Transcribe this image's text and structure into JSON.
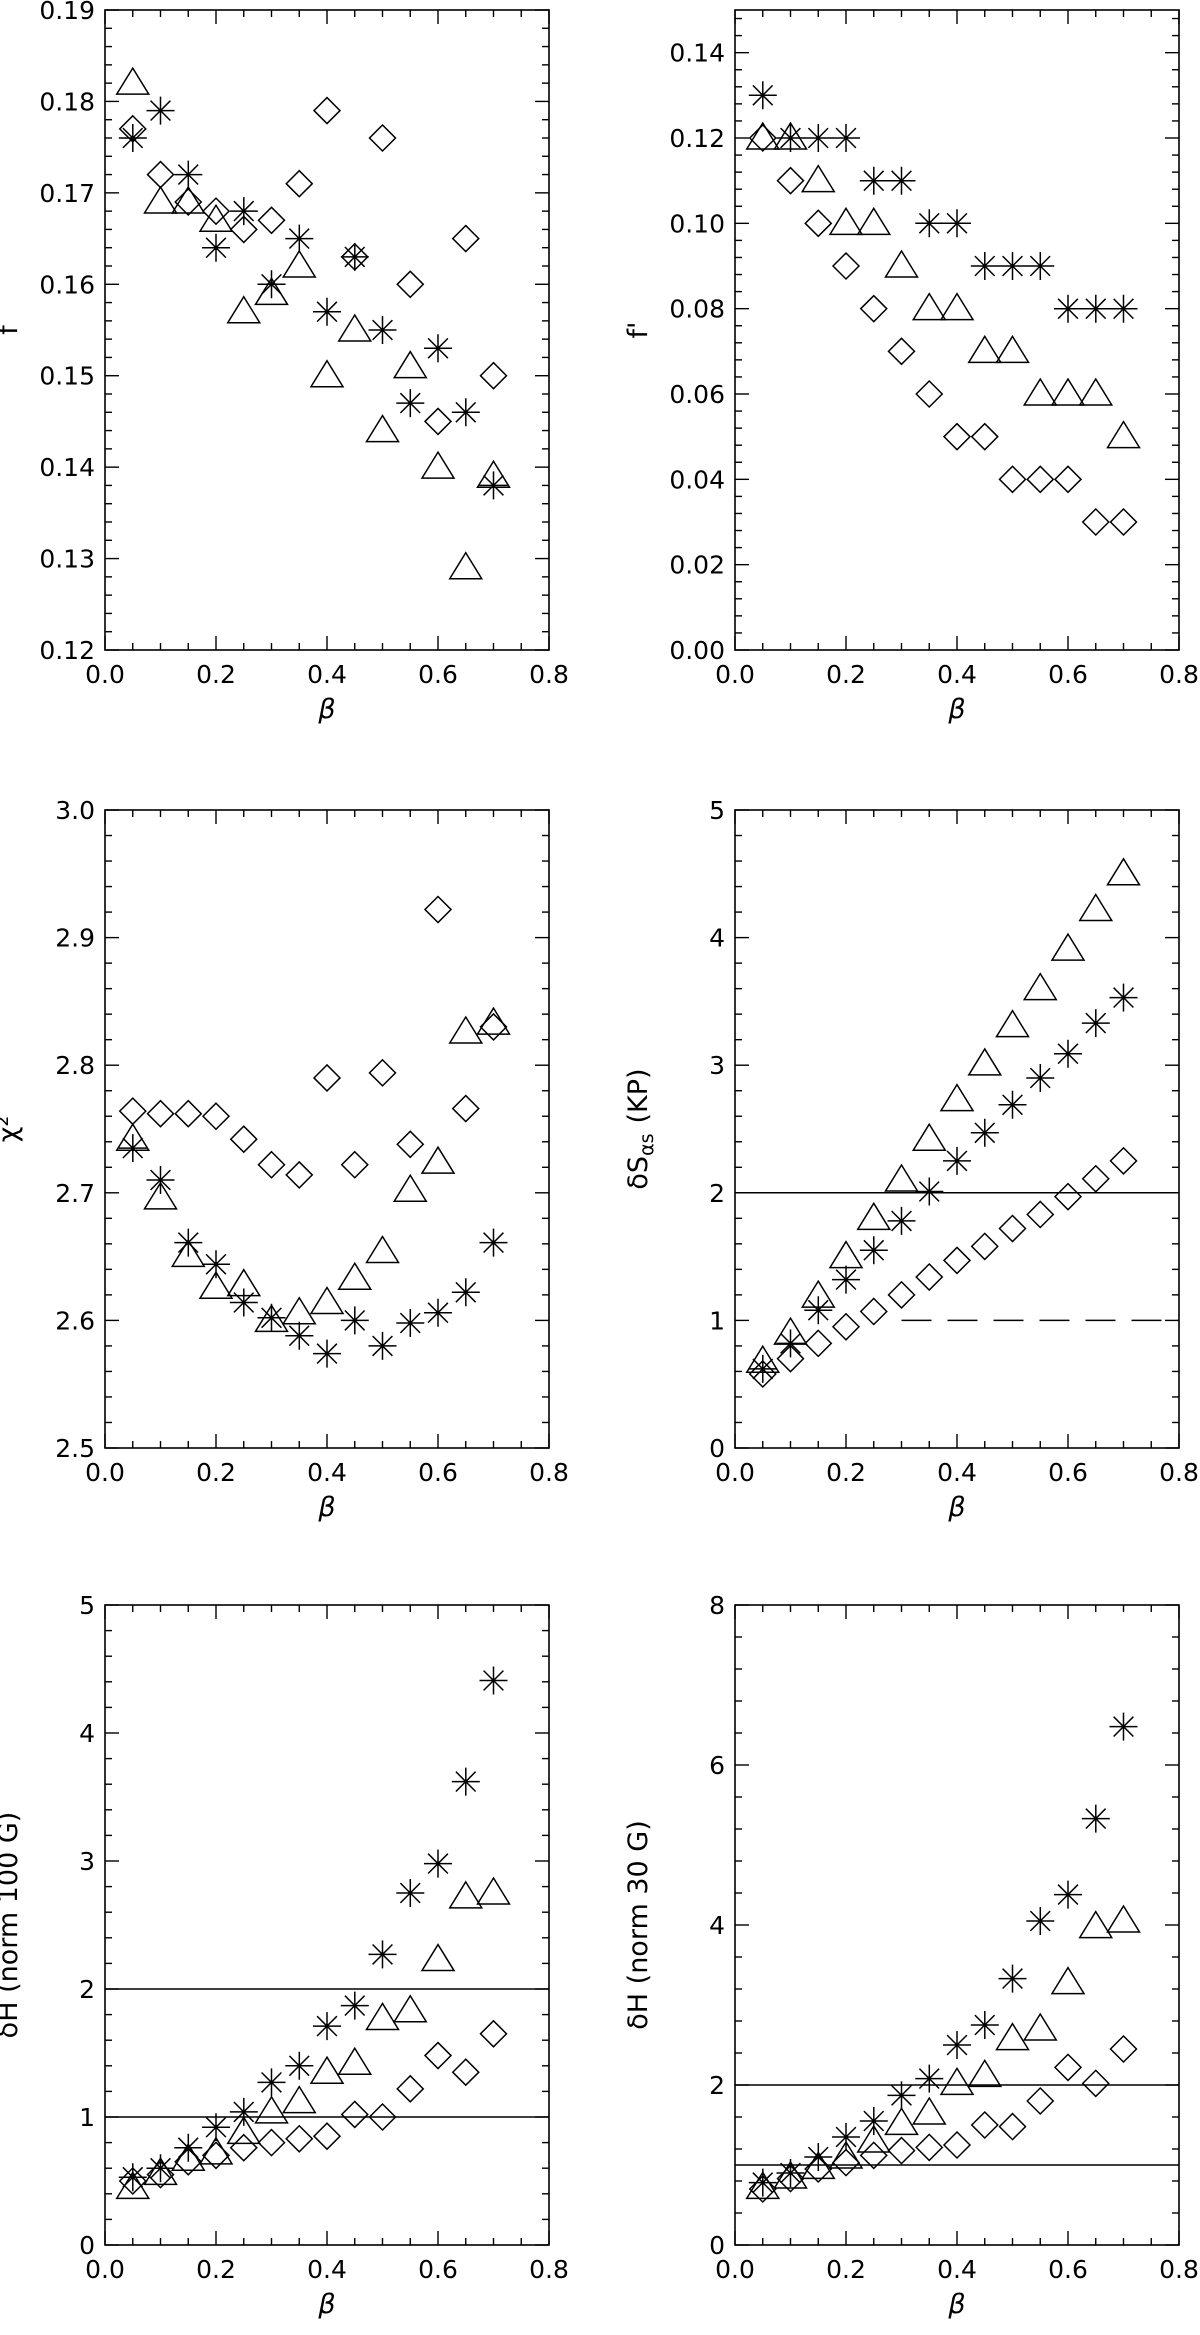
{
  "chart_data": [
    {
      "type": "scatter",
      "panel": "top-left",
      "xlabel": "β",
      "ylabel": "f",
      "xlim": [
        0.0,
        0.8
      ],
      "ylim": [
        0.12,
        0.19
      ],
      "xticks": [
        "0.0",
        "0.2",
        "0.4",
        "0.6",
        "0.8"
      ],
      "yticks": [
        "0.12",
        "0.13",
        "0.14",
        "0.15",
        "0.16",
        "0.17",
        "0.18",
        "0.19"
      ],
      "grid": false,
      "series": [
        {
          "marker": "diamond",
          "x": [
            0.05,
            0.1,
            0.15,
            0.2,
            0.25,
            0.3,
            0.35,
            0.4,
            0.45,
            0.5,
            0.55,
            0.6,
            0.65,
            0.7
          ],
          "y": [
            0.177,
            0.172,
            0.169,
            0.168,
            0.166,
            0.167,
            0.171,
            0.179,
            0.163,
            0.176,
            0.16,
            0.145,
            0.165,
            0.15
          ]
        },
        {
          "marker": "triangle",
          "x": [
            0.05,
            0.1,
            0.15,
            0.2,
            0.25,
            0.3,
            0.35,
            0.4,
            0.45,
            0.5,
            0.55,
            0.6,
            0.65,
            0.7
          ],
          "y": [
            0.182,
            0.169,
            0.169,
            0.167,
            0.157,
            0.159,
            0.162,
            0.15,
            0.155,
            0.144,
            0.151,
            0.14,
            0.129,
            0.139
          ]
        },
        {
          "marker": "asterisk",
          "x": [
            0.05,
            0.1,
            0.15,
            0.2,
            0.25,
            0.3,
            0.35,
            0.4,
            0.45,
            0.5,
            0.55,
            0.6,
            0.65,
            0.7
          ],
          "y": [
            0.176,
            0.179,
            0.172,
            0.164,
            0.168,
            0.16,
            0.165,
            0.157,
            0.163,
            0.155,
            0.147,
            0.153,
            0.146,
            0.138
          ]
        }
      ],
      "reference_lines": []
    },
    {
      "type": "scatter",
      "panel": "top-right",
      "xlabel": "β",
      "ylabel": "f'",
      "xlim": [
        0.0,
        0.8
      ],
      "ylim": [
        0.0,
        0.15
      ],
      "xticks": [
        "0.0",
        "0.2",
        "0.4",
        "0.6",
        "0.8"
      ],
      "yticks": [
        "0.00",
        "0.02",
        "0.04",
        "0.06",
        "0.08",
        "0.10",
        "0.12",
        "0.14"
      ],
      "grid": false,
      "series": [
        {
          "marker": "diamond",
          "x": [
            0.05,
            0.1,
            0.15,
            0.2,
            0.25,
            0.3,
            0.35,
            0.4,
            0.45,
            0.5,
            0.55,
            0.6,
            0.65,
            0.7
          ],
          "y": [
            0.12,
            0.11,
            0.1,
            0.09,
            0.08,
            0.07,
            0.06,
            0.05,
            0.05,
            0.04,
            0.04,
            0.04,
            0.03,
            0.03
          ]
        },
        {
          "marker": "triangle",
          "x": [
            0.05,
            0.1,
            0.15,
            0.2,
            0.25,
            0.3,
            0.35,
            0.4,
            0.45,
            0.5,
            0.55,
            0.6,
            0.65,
            0.7
          ],
          "y": [
            0.12,
            0.12,
            0.11,
            0.1,
            0.1,
            0.09,
            0.08,
            0.08,
            0.07,
            0.07,
            0.06,
            0.06,
            0.06,
            0.05
          ]
        },
        {
          "marker": "asterisk",
          "x": [
            0.05,
            0.1,
            0.15,
            0.2,
            0.25,
            0.3,
            0.35,
            0.4,
            0.45,
            0.5,
            0.55,
            0.6,
            0.65,
            0.7
          ],
          "y": [
            0.13,
            0.12,
            0.12,
            0.12,
            0.11,
            0.11,
            0.1,
            0.1,
            0.09,
            0.09,
            0.09,
            0.08,
            0.08,
            0.08
          ]
        }
      ],
      "reference_lines": []
    },
    {
      "type": "scatter",
      "panel": "middle-left",
      "xlabel": "β",
      "ylabel": "χ²",
      "xlim": [
        0.0,
        0.8
      ],
      "ylim": [
        2.5,
        3.0
      ],
      "xticks": [
        "0.0",
        "0.2",
        "0.4",
        "0.6",
        "0.8"
      ],
      "yticks": [
        "2.5",
        "2.6",
        "2.7",
        "2.8",
        "2.9",
        "3.0"
      ],
      "grid": false,
      "series": [
        {
          "marker": "diamond",
          "x": [
            0.05,
            0.1,
            0.15,
            0.2,
            0.25,
            0.3,
            0.35,
            0.4,
            0.45,
            0.5,
            0.55,
            0.6,
            0.65,
            0.7
          ],
          "y": [
            2.764,
            2.762,
            2.762,
            2.76,
            2.742,
            2.722,
            2.714,
            2.79,
            2.722,
            2.794,
            2.738,
            2.922,
            2.766,
            2.83
          ]
        },
        {
          "marker": "triangle",
          "x": [
            0.05,
            0.1,
            0.15,
            0.2,
            0.25,
            0.3,
            0.35,
            0.4,
            0.45,
            0.5,
            0.55,
            0.6,
            0.65,
            0.7
          ],
          "y": [
            2.742,
            2.696,
            2.651,
            2.626,
            2.628,
            2.6,
            2.606,
            2.614,
            2.633,
            2.654,
            2.702,
            2.724,
            2.826,
            2.833
          ]
        },
        {
          "marker": "asterisk",
          "x": [
            0.05,
            0.1,
            0.15,
            0.2,
            0.25,
            0.3,
            0.35,
            0.4,
            0.45,
            0.5,
            0.55,
            0.6,
            0.65,
            0.7
          ],
          "y": [
            2.735,
            2.71,
            2.661,
            2.644,
            2.614,
            2.602,
            2.588,
            2.574,
            2.6,
            2.58,
            2.598,
            2.606,
            2.622,
            2.661
          ]
        }
      ],
      "reference_lines": []
    },
    {
      "type": "scatter",
      "panel": "middle-right",
      "xlabel": "β",
      "ylabel": "δS_αs  (KP)",
      "ylabel_main": "δS",
      "ylabel_sub": "αs",
      "ylabel_unit": "(KP)",
      "xlim": [
        0.0,
        0.8
      ],
      "ylim": [
        0,
        5
      ],
      "xticks": [
        "0.0",
        "0.2",
        "0.4",
        "0.6",
        "0.8"
      ],
      "yticks": [
        "0",
        "1",
        "2",
        "3",
        "4",
        "5"
      ],
      "grid": false,
      "series": [
        {
          "marker": "diamond",
          "x": [
            0.05,
            0.1,
            0.15,
            0.2,
            0.25,
            0.3,
            0.35,
            0.4,
            0.45,
            0.5,
            0.55,
            0.6,
            0.65,
            0.7
          ],
          "y": [
            0.58,
            0.7,
            0.82,
            0.95,
            1.07,
            1.2,
            1.34,
            1.47,
            1.58,
            1.72,
            1.83,
            1.97,
            2.11,
            2.25
          ]
        },
        {
          "marker": "triangle",
          "x": [
            0.05,
            0.1,
            0.15,
            0.2,
            0.25,
            0.3,
            0.35,
            0.4,
            0.45,
            0.5,
            0.55,
            0.6,
            0.65,
            0.7
          ],
          "y": [
            0.68,
            0.9,
            1.19,
            1.5,
            1.8,
            2.1,
            2.42,
            2.73,
            3.01,
            3.31,
            3.6,
            3.91,
            4.22,
            4.5
          ]
        },
        {
          "marker": "asterisk",
          "x": [
            0.05,
            0.1,
            0.15,
            0.2,
            0.25,
            0.3,
            0.35,
            0.4,
            0.45,
            0.5,
            0.55,
            0.6,
            0.65,
            0.7
          ],
          "y": [
            0.62,
            0.82,
            1.08,
            1.32,
            1.55,
            1.78,
            2.01,
            2.25,
            2.47,
            2.69,
            2.9,
            3.09,
            3.33,
            3.53
          ]
        }
      ],
      "reference_lines": [
        {
          "y": 2,
          "style": "solid",
          "x_from": 0.0
        },
        {
          "y": 1,
          "style": "dashed",
          "x_from": 0.3
        }
      ]
    },
    {
      "type": "scatter",
      "panel": "bottom-left",
      "xlabel": "β",
      "ylabel": "δH  (norm 100 G)",
      "xlim": [
        0.0,
        0.8
      ],
      "ylim": [
        0,
        5
      ],
      "xticks": [
        "0.0",
        "0.2",
        "0.4",
        "0.6",
        "0.8"
      ],
      "yticks": [
        "0",
        "1",
        "2",
        "3",
        "4",
        "5"
      ],
      "grid": false,
      "series": [
        {
          "marker": "diamond",
          "x": [
            0.05,
            0.1,
            0.15,
            0.2,
            0.25,
            0.3,
            0.35,
            0.4,
            0.45,
            0.5,
            0.55,
            0.6,
            0.65,
            0.7
          ],
          "y": [
            0.5,
            0.55,
            0.65,
            0.7,
            0.76,
            0.8,
            0.83,
            0.85,
            1.02,
            1.0,
            1.22,
            1.48,
            1.35,
            1.65
          ]
        },
        {
          "marker": "triangle",
          "x": [
            0.05,
            0.1,
            0.15,
            0.2,
            0.25,
            0.3,
            0.35,
            0.4,
            0.45,
            0.5,
            0.55,
            0.6,
            0.65,
            0.7
          ],
          "y": [
            0.45,
            0.56,
            0.67,
            0.72,
            0.88,
            1.04,
            1.12,
            1.35,
            1.42,
            1.77,
            1.83,
            2.23,
            2.72,
            2.75
          ]
        },
        {
          "marker": "asterisk",
          "x": [
            0.05,
            0.1,
            0.15,
            0.2,
            0.25,
            0.3,
            0.35,
            0.4,
            0.45,
            0.5,
            0.55,
            0.6,
            0.65,
            0.7
          ],
          "y": [
            0.53,
            0.6,
            0.76,
            0.92,
            1.04,
            1.27,
            1.4,
            1.71,
            1.87,
            2.27,
            2.75,
            2.98,
            3.62,
            4.41
          ]
        }
      ],
      "reference_lines": [
        {
          "y": 2,
          "style": "solid",
          "x_from": 0.0
        },
        {
          "y": 1,
          "style": "solid",
          "x_from": 0.0
        }
      ]
    },
    {
      "type": "scatter",
      "panel": "bottom-right",
      "xlabel": "β",
      "ylabel": "δH  (norm 30 G)",
      "xlim": [
        0.0,
        0.8
      ],
      "ylim": [
        0,
        8
      ],
      "xticks": [
        "0.0",
        "0.2",
        "0.4",
        "0.6",
        "0.8"
      ],
      "yticks": [
        "0",
        "2",
        "4",
        "6",
        "8"
      ],
      "grid": false,
      "series": [
        {
          "marker": "diamond",
          "x": [
            0.05,
            0.1,
            0.15,
            0.2,
            0.25,
            0.3,
            0.35,
            0.4,
            0.45,
            0.5,
            0.55,
            0.6,
            0.65,
            0.7
          ],
          "y": [
            0.7,
            0.83,
            0.95,
            1.03,
            1.12,
            1.18,
            1.22,
            1.25,
            1.5,
            1.48,
            1.8,
            2.22,
            2.02,
            2.45
          ]
        },
        {
          "marker": "triangle",
          "x": [
            0.05,
            0.1,
            0.15,
            0.2,
            0.25,
            0.3,
            0.35,
            0.4,
            0.45,
            0.5,
            0.55,
            0.6,
            0.65,
            0.7
          ],
          "y": [
            0.72,
            0.85,
            0.97,
            1.1,
            1.3,
            1.52,
            1.65,
            2.02,
            2.12,
            2.58,
            2.7,
            3.28,
            3.98,
            4.05
          ]
        },
        {
          "marker": "asterisk",
          "x": [
            0.05,
            0.1,
            0.15,
            0.2,
            0.25,
            0.3,
            0.35,
            0.4,
            0.45,
            0.5,
            0.55,
            0.6,
            0.65,
            0.7
          ],
          "y": [
            0.78,
            0.9,
            1.1,
            1.35,
            1.55,
            1.87,
            2.08,
            2.5,
            2.75,
            3.33,
            4.05,
            4.38,
            5.33,
            6.48
          ]
        }
      ],
      "reference_lines": [
        {
          "y": 2,
          "style": "solid",
          "x_from": 0.0
        },
        {
          "y": 1,
          "style": "solid",
          "x_from": 0.0
        }
      ]
    }
  ]
}
